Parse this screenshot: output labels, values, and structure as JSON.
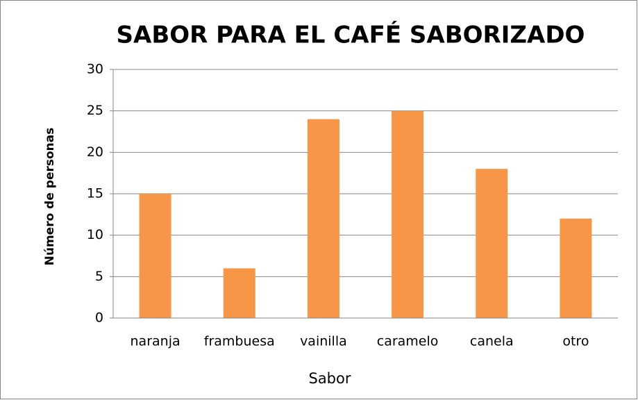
{
  "chart_data": {
    "type": "bar",
    "title": "SABOR PARA EL CAFÉ SABORIZADO",
    "x_label": "Sabor",
    "y_label": "Número de personas",
    "categories": [
      "naranja",
      "frambuesa",
      "vainilla",
      "caramelo",
      "canela",
      "otro"
    ],
    "values": [
      15,
      6,
      24,
      25,
      18,
      12
    ],
    "color": "#f79646",
    "ylim": [
      0,
      30
    ],
    "yticks": [
      0,
      5,
      10,
      15,
      20,
      25,
      30
    ],
    "grid": true
  }
}
